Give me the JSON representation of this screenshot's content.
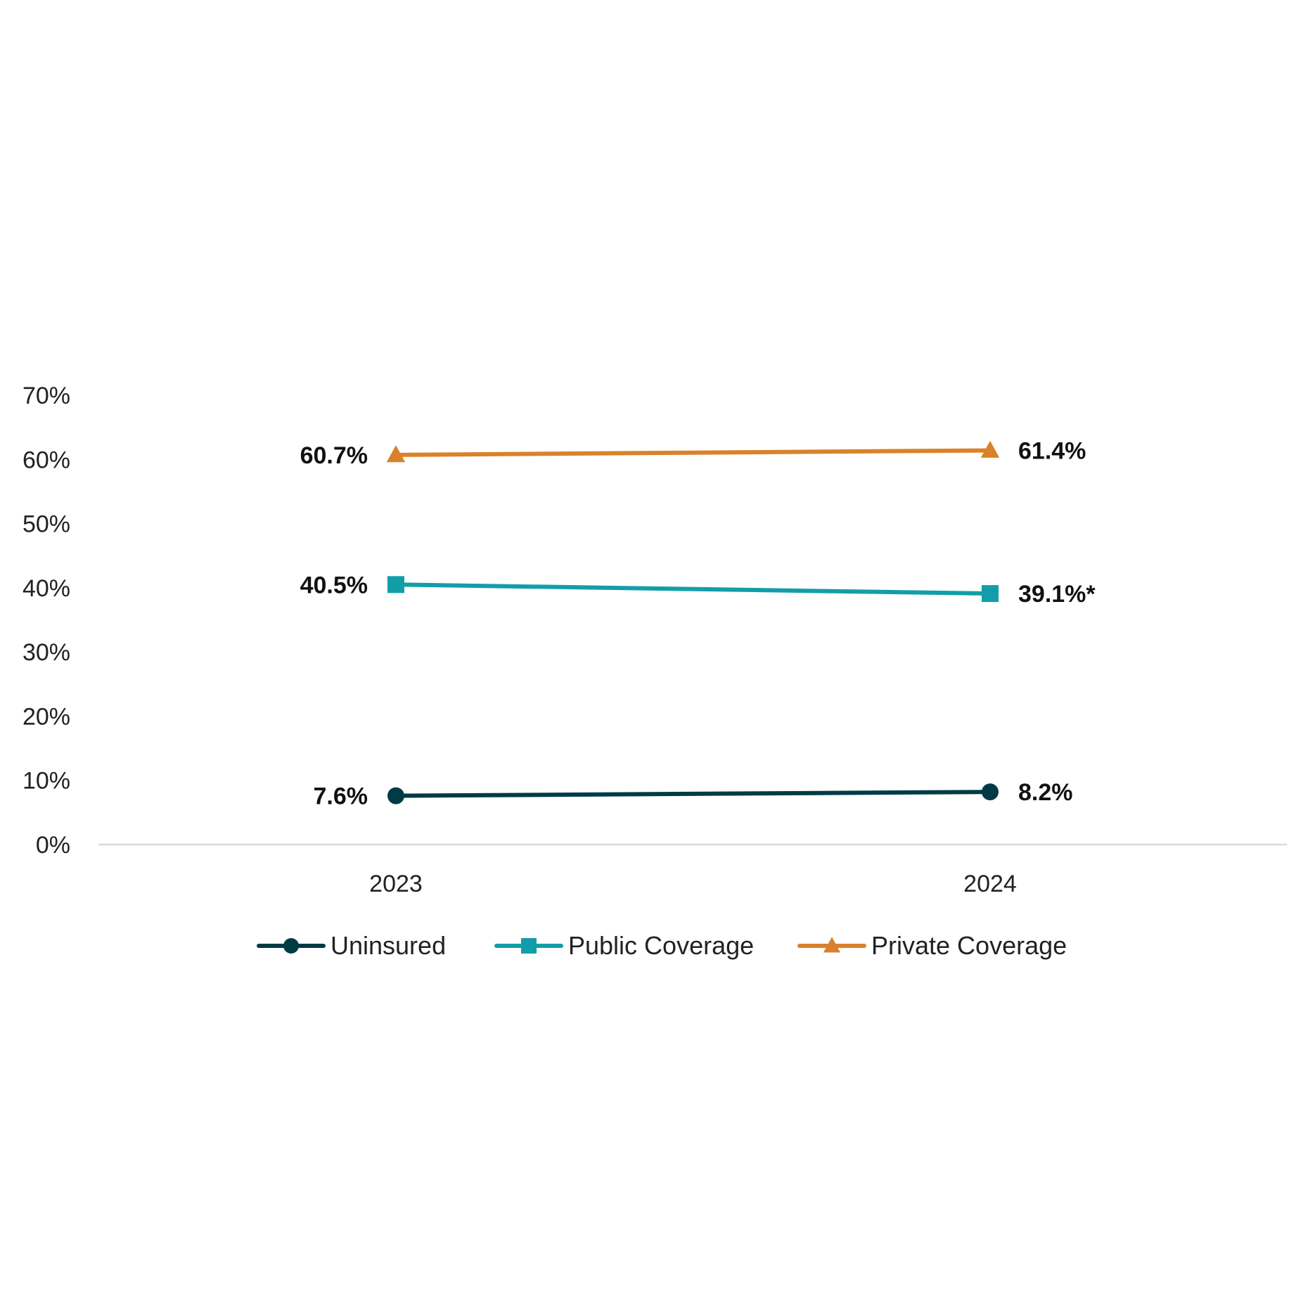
{
  "chart_data": {
    "type": "line",
    "title": "",
    "xlabel": "",
    "ylabel": "",
    "categories": [
      "2023",
      "2024"
    ],
    "ylim": [
      0,
      70
    ],
    "yticks": [
      0,
      10,
      20,
      30,
      40,
      50,
      60,
      70
    ],
    "ytick_labels": [
      "0%",
      "10%",
      "20%",
      "30%",
      "40%",
      "50%",
      "60%",
      "70%"
    ],
    "grid": false,
    "legend_position": "bottom",
    "series": [
      {
        "name": "Uninsured",
        "values": [
          7.6,
          8.2
        ],
        "labels": [
          "7.6%",
          "8.2%"
        ],
        "color": "#003b45",
        "marker": "circle"
      },
      {
        "name": "Public Coverage",
        "values": [
          40.5,
          39.1
        ],
        "labels": [
          "40.5%",
          "39.1%*"
        ],
        "color": "#129ea8",
        "marker": "square"
      },
      {
        "name": "Private Coverage",
        "values": [
          60.7,
          61.4
        ],
        "labels": [
          "60.7%",
          "61.4%"
        ],
        "color": "#d9822b",
        "marker": "triangle"
      }
    ]
  }
}
